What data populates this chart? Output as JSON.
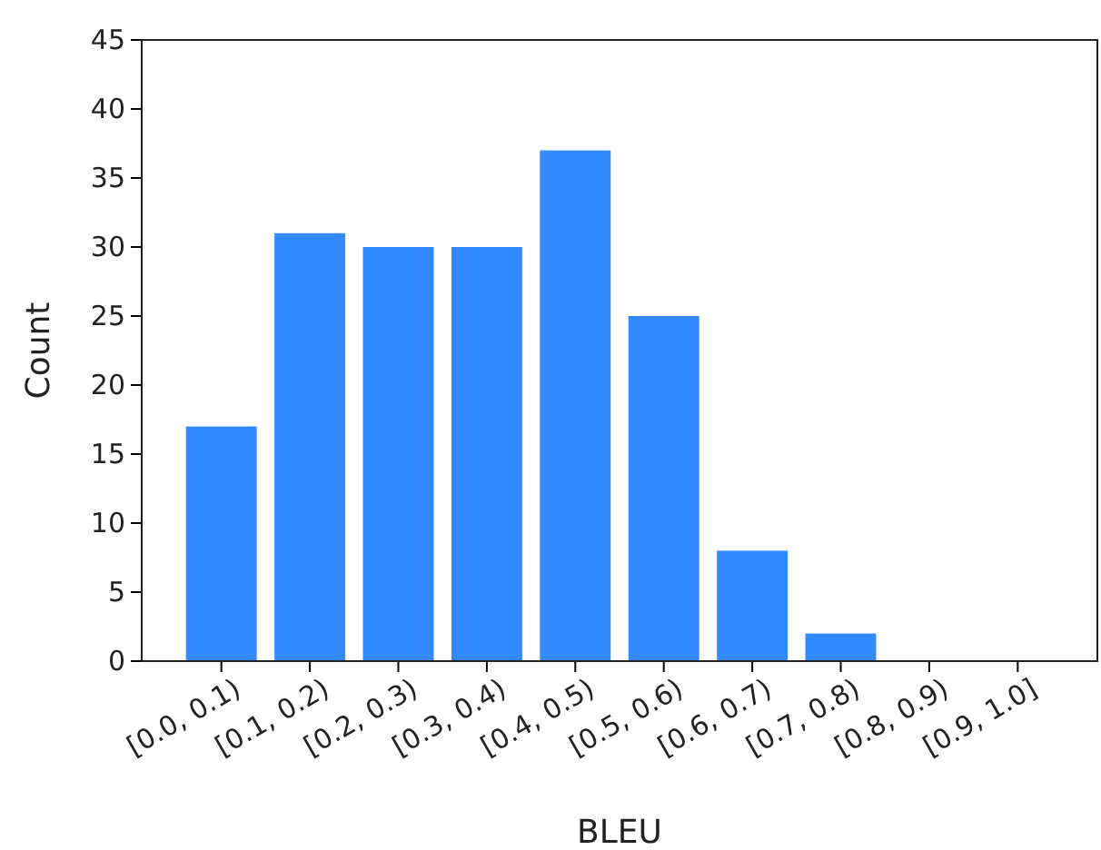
{
  "chart_data": {
    "type": "bar",
    "xlabel": "BLEU",
    "ylabel": "Count",
    "categories": [
      "[0.0, 0.1)",
      "[0.1, 0.2)",
      "[0.2, 0.3)",
      "[0.3, 0.4)",
      "[0.4, 0.5)",
      "[0.5, 0.6)",
      "[0.6, 0.7)",
      "[0.7, 0.8)",
      "[0.8, 0.9)",
      "[0.9, 1.0]"
    ],
    "values": [
      17,
      31,
      30,
      30,
      37,
      25,
      8,
      2,
      0,
      0
    ],
    "color": "#3389ff",
    "ylim": [
      0,
      45
    ],
    "yticks": [
      0,
      5,
      10,
      15,
      20,
      25,
      30,
      35,
      40,
      45
    ]
  }
}
